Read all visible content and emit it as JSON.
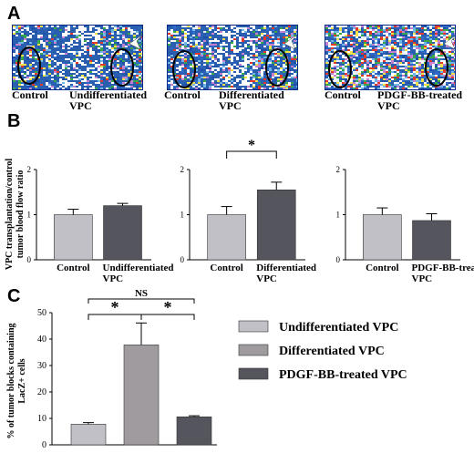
{
  "panels": {
    "a": "A",
    "b": "B",
    "c": "C"
  },
  "colors": {
    "light_bar": "#c0c0c6",
    "dark_bar": "#55555d",
    "mid_bar": "#a09b9f",
    "flow_bg": "#2a5fb0"
  },
  "panel_a": {
    "images": [
      {
        "left_label": "Control",
        "right_label_line1": "Undifferentiated",
        "right_label_line2": "VPC",
        "arrow_icon": "arrowhead-icon"
      },
      {
        "left_label": "Control",
        "right_label_line1": "Differentiated",
        "right_label_line2": "VPC",
        "arrow_icon": "arrowhead-icon"
      },
      {
        "left_label": "Control",
        "right_label_line1": "PDGF-BB-treated",
        "right_label_line2": "VPC",
        "arrow_icon": "arrowhead-icon"
      }
    ]
  },
  "chart_data": [
    {
      "type": "bar",
      "ylabel": "VPC transplantation/control tumor blood flow ratio",
      "ylim": [
        0,
        2
      ],
      "yticks": [
        "0",
        "1",
        "2"
      ],
      "categories": [
        "Control",
        "Undifferentiated VPC"
      ],
      "values": [
        1.0,
        1.2
      ],
      "errors": [
        0.12,
        0.05
      ],
      "significance": []
    },
    {
      "type": "bar",
      "ylim": [
        0,
        2
      ],
      "yticks": [
        "0",
        "1",
        "2"
      ],
      "categories": [
        "Control",
        "Differentiated VPC"
      ],
      "values": [
        1.0,
        1.55
      ],
      "errors": [
        0.18,
        0.17
      ],
      "significance": [
        {
          "from": 0,
          "to": 1,
          "label": "*"
        }
      ]
    },
    {
      "type": "bar",
      "ylim": [
        0,
        2
      ],
      "yticks": [
        "0",
        "1",
        "2"
      ],
      "categories": [
        "Control",
        "PDGF-BB-treated VPC"
      ],
      "values": [
        1.0,
        0.87
      ],
      "errors": [
        0.15,
        0.15
      ],
      "significance": []
    },
    {
      "type": "bar",
      "ylabel": "% of tumor blocks containing LacZ+ cells",
      "ylim": [
        0,
        50
      ],
      "yticks": [
        "0",
        "10",
        "20",
        "30",
        "40",
        "50"
      ],
      "series": [
        {
          "name": "Undifferentiated VPC",
          "values": [
            7.8
          ],
          "errors": [
            0.6
          ]
        },
        {
          "name": "Differentiated VPC",
          "values": [
            37.8
          ],
          "errors": [
            8.3
          ]
        },
        {
          "name": "PDGF-BB-treated VPC",
          "values": [
            10.6
          ],
          "errors": [
            0.4
          ]
        }
      ],
      "significance": [
        {
          "label": "*",
          "between": [
            "Undifferentiated VPC",
            "Differentiated VPC"
          ]
        },
        {
          "label": "*",
          "between": [
            "Differentiated VPC",
            "PDGF-BB-treated VPC"
          ]
        },
        {
          "label": "NS",
          "between": [
            "Undifferentiated VPC",
            "PDGF-BB-treated VPC"
          ]
        }
      ],
      "legend_position": "right"
    }
  ]
}
